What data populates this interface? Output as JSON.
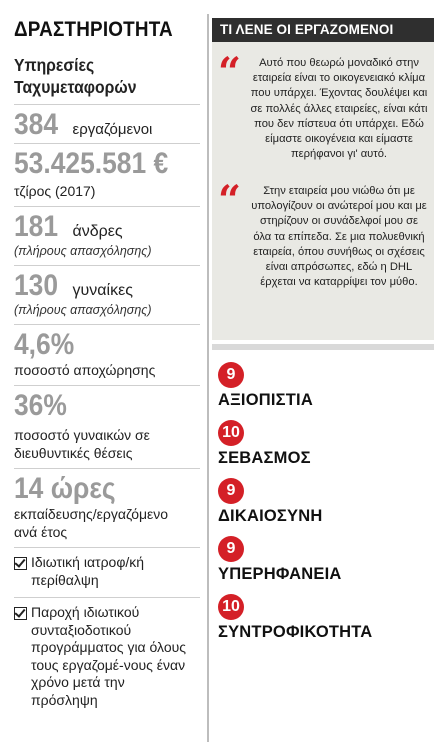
{
  "company": {
    "heading": "ΔΡΑΣΤΗΡΙΟΤΗΤΑ",
    "activity": "Υπηρεσίες Ταχυμεταφορών"
  },
  "stats": {
    "employees": {
      "value": "384",
      "label": "εργαζόμενοι"
    },
    "turnover": {
      "value": "53.425.581 €",
      "label": "τζίρος (2017)"
    },
    "men": {
      "value": "181",
      "label": "άνδρες",
      "note": "(πλήρους απασχόλησης)"
    },
    "women": {
      "value": "130",
      "label": "γυναίκες",
      "note": "(πλήρους απασχόλησης)"
    },
    "attrition": {
      "value": "4,6%",
      "label": "ποσοστό αποχώρησης"
    },
    "women_mgmt": {
      "value": "36%",
      "label": "ποσοστό γυναικών σε διευθυντικές θέσεις"
    },
    "training": {
      "value": "14 ώρες",
      "label": "εκπαίδευσης/εργαζόμενο ανά έτος"
    }
  },
  "benefits": [
    "Ιδιωτική ιατροφ/κή περίθαλψη",
    "Παροχή ιδιωτικού συνταξιοδοτικού προγράμματος για όλους τους εργαζομέ-νους έναν χρόνο μετά την πρόσληψη"
  ],
  "quotes": {
    "title": "ΤΙ ΛΕΝΕ ΟΙ ΕΡΓΑΖΟΜΕΝΟΙ",
    "mark": "“",
    "items": [
      "Αυτό που θεωρώ μοναδικό στην εταιρεία είναι το οικογενειακό κλίμα που υπάρχει. Έχοντας δουλέψει και σε πολλές άλλες εταιρείες, είναι κάτι που δεν πίστευα ότι υπάρχει. Εδώ είμαστε οικογένεια και είμαστε περήφανοι γι' αυτό.",
      "Στην εταιρεία μου νιώθω ότι με υπολογίζουν οι ανώτεροί μου και με στηρίζουν οι συνάδελφοί μου σε όλα τα επίπεδα. Σε μια πολυεθνική εταιρεία, όπου συνήθως οι σχέσεις είναι απρόσωπες, εδώ η DHL έρχεται να καταρρίψει τον μύθο."
    ]
  },
  "scores": [
    {
      "score": "9",
      "label": "ΑΞΙΟΠΙΣΤΙΑ"
    },
    {
      "score": "10",
      "label": "ΣΕΒΑΣΜΟΣ"
    },
    {
      "score": "9",
      "label": "ΔΙΚΑΙΟΣΥΝΗ"
    },
    {
      "score": "9",
      "label": "ΥΠΕΡΗΦΑΝΕΙΑ"
    },
    {
      "score": "10",
      "label": "ΣΥΝΤΡΟΦΙΚΟΤΗΤΑ"
    }
  ],
  "colors": {
    "accent": "#d42027",
    "stat_gray": "#9a9a9a",
    "panel_bg": "#e9e9e4",
    "title_bar": "#2f2f2f"
  }
}
